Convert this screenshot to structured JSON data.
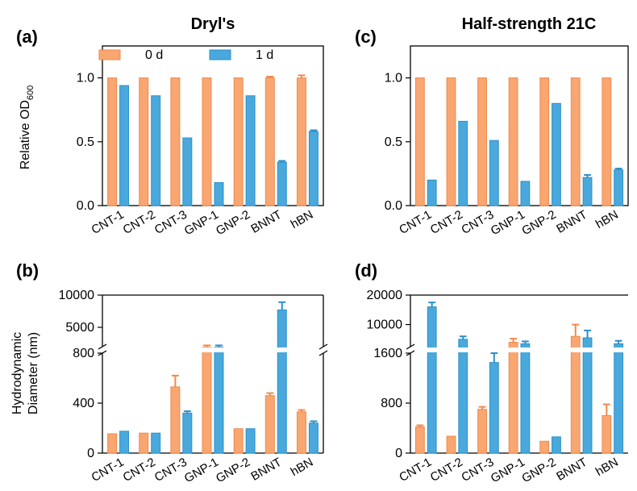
{
  "figure": {
    "column_titles": [
      "Dryl's",
      "Half-strength 21C"
    ],
    "ylabel_top": "Relative OD",
    "ylabel_top_sub": "600",
    "ylabel_bottom_line1": "Hydrodynamic",
    "ylabel_bottom_line2": "Diameter (nm)"
  },
  "chart_data": [
    {
      "panel": "(a)",
      "type": "bar",
      "title": "Dryl's",
      "categories": [
        "CNT-1",
        "CNT-2",
        "CNT-3",
        "GNP-1",
        "GNP-2",
        "BNNT",
        "hBN"
      ],
      "series": [
        {
          "name": "0 d",
          "values": [
            1.0,
            1.0,
            1.0,
            1.0,
            1.0,
            1.0,
            1.0
          ],
          "errors": [
            0,
            0,
            0,
            0,
            0,
            0.01,
            0.02
          ]
        },
        {
          "name": "1 d",
          "values": [
            0.94,
            0.86,
            0.53,
            0.18,
            0.86,
            0.34,
            0.58
          ],
          "errors": [
            0,
            0,
            0,
            0,
            0,
            0.01,
            0.01
          ]
        }
      ],
      "ylim": [
        0,
        1.25
      ],
      "yticks": [
        0.0,
        0.5,
        1.0
      ],
      "ytick_labels": [
        "0.0",
        "0.5",
        "1.0"
      ],
      "legend_placement": "top"
    },
    {
      "panel": "(c)",
      "type": "bar",
      "title": "Half-strength 21C",
      "categories": [
        "CNT-1",
        "CNT-2",
        "CNT-3",
        "GNP-1",
        "GNP-2",
        "BNNT",
        "hBN"
      ],
      "series": [
        {
          "name": "0 d",
          "values": [
            1.0,
            1.0,
            1.0,
            1.0,
            1.0,
            1.0,
            1.0
          ],
          "errors": [
            0,
            0,
            0,
            0,
            0,
            0,
            0
          ]
        },
        {
          "name": "1 d",
          "values": [
            0.2,
            0.66,
            0.51,
            0.19,
            0.8,
            0.22,
            0.28
          ],
          "errors": [
            0,
            0,
            0,
            0,
            0,
            0.02,
            0.01
          ]
        }
      ],
      "ylim": [
        0,
        1.25
      ],
      "yticks": [
        0.0,
        0.5,
        1.0
      ],
      "ytick_labels": [
        "0.0",
        "0.5",
        "1.0"
      ]
    },
    {
      "panel": "(b)",
      "type": "bar",
      "categories": [
        "CNT-1",
        "CNT-2",
        "CNT-3",
        "GNP-1",
        "GNP-2",
        "BNNT",
        "hBN"
      ],
      "series": [
        {
          "name": "0 d",
          "values": [
            155,
            160,
            530,
            1900,
            195,
            460,
            330
          ],
          "errors": [
            0,
            0,
            90,
            300,
            0,
            20,
            15
          ]
        },
        {
          "name": "1 d",
          "values": [
            175,
            160,
            320,
            1900,
            195,
            7700,
            240
          ],
          "errors": [
            0,
            0,
            15,
            300,
            0,
            1200,
            15
          ]
        }
      ],
      "yaxis_broken": true,
      "lower_range": [
        0,
        800
      ],
      "upper_range": [
        2000,
        10000
      ],
      "yticks": [
        0,
        400,
        800,
        5000,
        10000
      ],
      "ytick_labels": [
        "0",
        "400",
        "800",
        "5000",
        "10000"
      ]
    },
    {
      "panel": "(d)",
      "type": "bar",
      "categories": [
        "CNT-1",
        "CNT-2",
        "CNT-3",
        "GNP-1",
        "GNP-2",
        "BNNT",
        "hBN"
      ],
      "series": [
        {
          "name": "0 d",
          "values": [
            420,
            270,
            700,
            4000,
            190,
            6000,
            600
          ],
          "errors": [
            25,
            0,
            40,
            1200,
            0,
            4000,
            180
          ]
        },
        {
          "name": "1 d",
          "values": [
            16000,
            5000,
            1450,
            3500,
            260,
            5500,
            3500
          ],
          "errors": [
            1500,
            1000,
            150,
            800,
            0,
            2500,
            1000
          ]
        }
      ],
      "yaxis_broken": true,
      "lower_range": [
        0,
        1600
      ],
      "upper_range": [
        2500,
        20000
      ],
      "yticks": [
        0,
        800,
        1600,
        10000,
        20000
      ],
      "ytick_labels": [
        "0",
        "800",
        "1600",
        "10000",
        "20000"
      ]
    }
  ],
  "colors": {
    "zero_day": "#F9A671",
    "zero_day_edge": "#EE8A4C",
    "one_day": "#4AA9DC",
    "one_day_edge": "#2E8FC7"
  }
}
